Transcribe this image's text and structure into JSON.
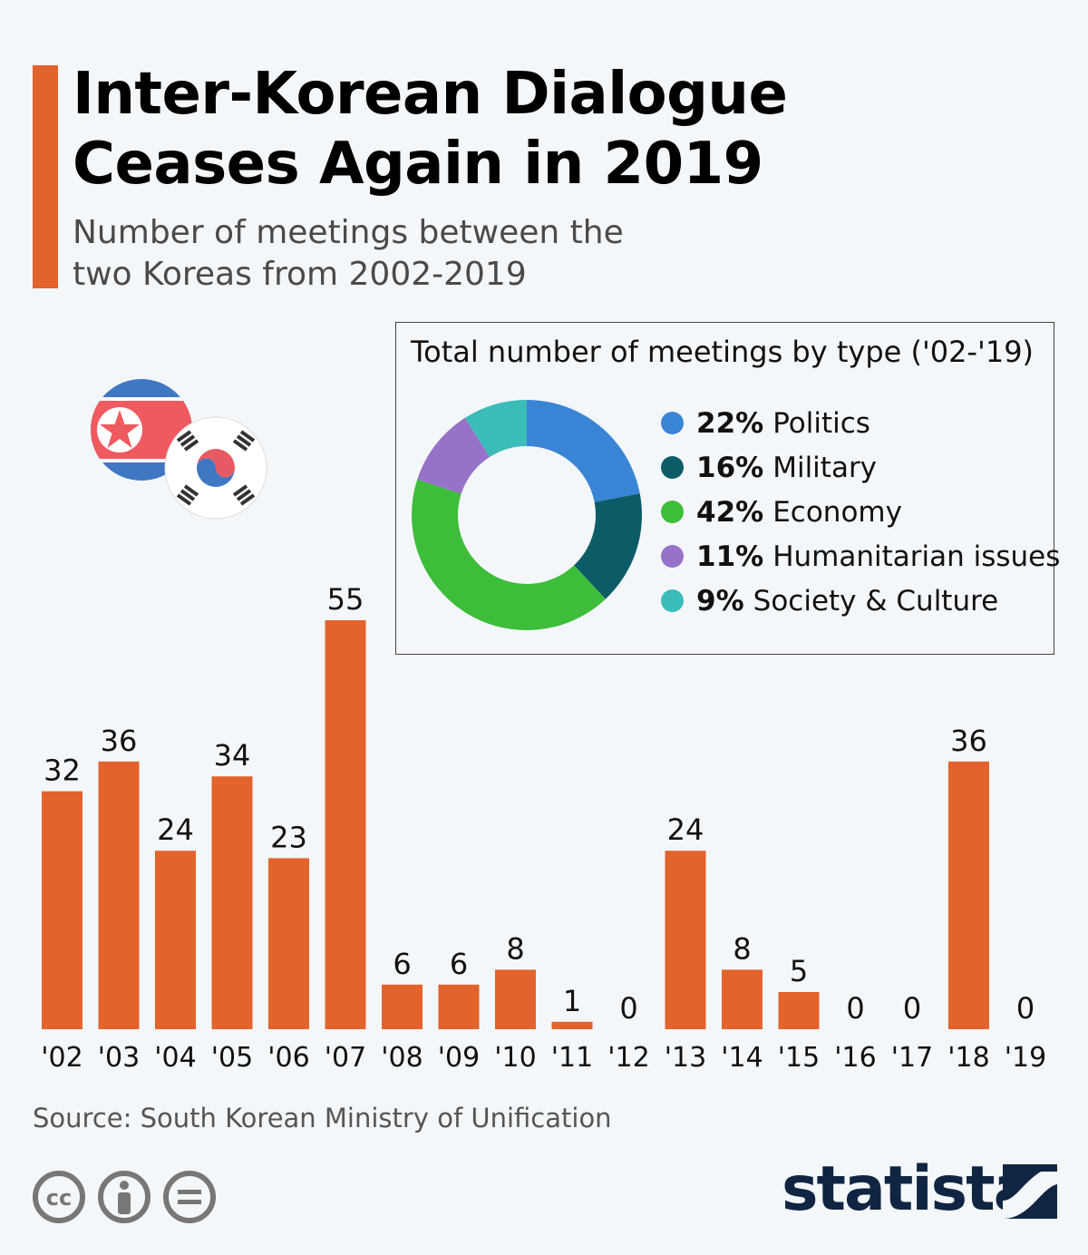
{
  "header": {
    "title_line1": "Inter-Korean Dialogue",
    "title_line2": "Ceases Again in 2019",
    "subtitle_line1": "Number of meetings between the",
    "subtitle_line2": "two Koreas from 2002-2019"
  },
  "colors": {
    "accent": "#e2632c",
    "bar": "#e2632c",
    "background": "#f4f7fa",
    "logo": "#0f2542"
  },
  "inset": {
    "title": "Total number of meetings by type ('02-'19)"
  },
  "chart_data": [
    {
      "type": "bar",
      "categories": [
        "'02",
        "'03",
        "'04",
        "'05",
        "'06",
        "'07",
        "'08",
        "'09",
        "'10",
        "'11",
        "'12",
        "'13",
        "'14",
        "'15",
        "'16",
        "'17",
        "'18",
        "'19"
      ],
      "values": [
        32,
        36,
        24,
        34,
        23,
        55,
        6,
        6,
        8,
        1,
        0,
        24,
        8,
        5,
        0,
        0,
        36,
        0
      ],
      "data_labels": [
        "32",
        "36",
        "24",
        "34",
        "23",
        "55",
        "6",
        "6",
        "8",
        "1",
        "0",
        "24",
        "8",
        "5",
        "0",
        "0",
        "36",
        "0"
      ],
      "ylim": [
        0,
        55
      ],
      "grid": false,
      "title": "",
      "xlabel": "",
      "ylabel": ""
    },
    {
      "type": "pie",
      "title": "Total number of meetings by type ('02-'19)",
      "donut": true,
      "slices": [
        {
          "label": "Politics",
          "pct_label": "22%",
          "value": 22,
          "color": "#3a84d6"
        },
        {
          "label": "Military",
          "pct_label": "16%",
          "value": 16,
          "color": "#0c5c68"
        },
        {
          "label": "Economy",
          "pct_label": "42%",
          "value": 42,
          "color": "#3dbd3a"
        },
        {
          "label": "Humanitarian issues",
          "pct_label": "11%",
          "value": 11,
          "color": "#9672c9"
        },
        {
          "label": "Society & Culture",
          "pct_label": "9%",
          "value": 9,
          "color": "#3abcb9"
        }
      ],
      "legend_position": "right"
    }
  ],
  "footer": {
    "source": "Source: South Korean Ministry of Unification",
    "logo": "statista",
    "license_icons": [
      "cc-icon",
      "by-icon",
      "nd-icon"
    ]
  }
}
